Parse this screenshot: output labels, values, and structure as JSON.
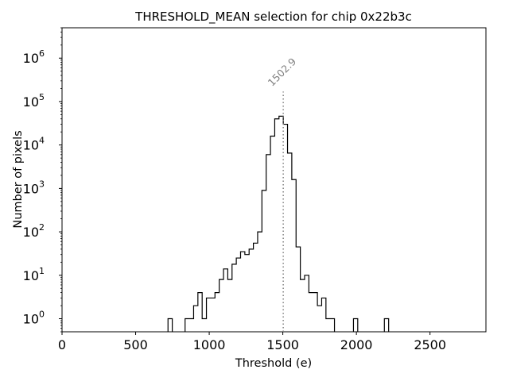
{
  "chart_data": {
    "type": "histogram",
    "title": "THRESHOLD_MEAN selection for chip 0x22b3c",
    "xlabel": "Threshold (e)",
    "ylabel": "Number of pixels",
    "xlim": [
      0,
      2880
    ],
    "ylim": [
      0.5,
      5000000
    ],
    "yscale": "log",
    "grid": false,
    "x_ticks": [
      {
        "value": 0,
        "label": "0"
      },
      {
        "value": 500,
        "label": "500"
      },
      {
        "value": 1000,
        "label": "1000"
      },
      {
        "value": 1500,
        "label": "1500"
      },
      {
        "value": 2000,
        "label": "2000"
      },
      {
        "value": 2500,
        "label": "2500"
      }
    ],
    "y_ticks": [
      {
        "value": 1,
        "base": "10",
        "exp": "0"
      },
      {
        "value": 10,
        "base": "10",
        "exp": "1"
      },
      {
        "value": 100,
        "base": "10",
        "exp": "2"
      },
      {
        "value": 1000,
        "base": "10",
        "exp": "3"
      },
      {
        "value": 10000,
        "base": "10",
        "exp": "4"
      },
      {
        "value": 100000,
        "base": "10",
        "exp": "5"
      },
      {
        "value": 1000000,
        "base": "10",
        "exp": "6"
      }
    ],
    "bin_width": 29,
    "bins": [
      {
        "x": 720,
        "count": 1
      },
      {
        "x": 836,
        "count": 1
      },
      {
        "x": 865,
        "count": 1
      },
      {
        "x": 894,
        "count": 2
      },
      {
        "x": 923,
        "count": 4
      },
      {
        "x": 952,
        "count": 1
      },
      {
        "x": 981,
        "count": 3
      },
      {
        "x": 1010,
        "count": 3
      },
      {
        "x": 1039,
        "count": 4
      },
      {
        "x": 1068,
        "count": 8
      },
      {
        "x": 1097,
        "count": 14
      },
      {
        "x": 1126,
        "count": 8
      },
      {
        "x": 1155,
        "count": 18
      },
      {
        "x": 1184,
        "count": 25
      },
      {
        "x": 1213,
        "count": 35
      },
      {
        "x": 1242,
        "count": 30
      },
      {
        "x": 1271,
        "count": 40
      },
      {
        "x": 1300,
        "count": 55
      },
      {
        "x": 1329,
        "count": 100
      },
      {
        "x": 1358,
        "count": 900
      },
      {
        "x": 1387,
        "count": 6000
      },
      {
        "x": 1416,
        "count": 16000
      },
      {
        "x": 1445,
        "count": 40000
      },
      {
        "x": 1474,
        "count": 46000
      },
      {
        "x": 1503,
        "count": 30000
      },
      {
        "x": 1532,
        "count": 6500
      },
      {
        "x": 1561,
        "count": 1600
      },
      {
        "x": 1590,
        "count": 45
      },
      {
        "x": 1619,
        "count": 8
      },
      {
        "x": 1648,
        "count": 10
      },
      {
        "x": 1677,
        "count": 4
      },
      {
        "x": 1706,
        "count": 4
      },
      {
        "x": 1735,
        "count": 2
      },
      {
        "x": 1764,
        "count": 3
      },
      {
        "x": 1793,
        "count": 1
      },
      {
        "x": 1822,
        "count": 1
      },
      {
        "x": 1980,
        "count": 1
      },
      {
        "x": 2190,
        "count": 1
      }
    ],
    "annotations": [
      {
        "x": 1502.9,
        "label": "1502.9",
        "line_top": 170000,
        "style": "dotted",
        "color": "#808080"
      }
    ]
  }
}
